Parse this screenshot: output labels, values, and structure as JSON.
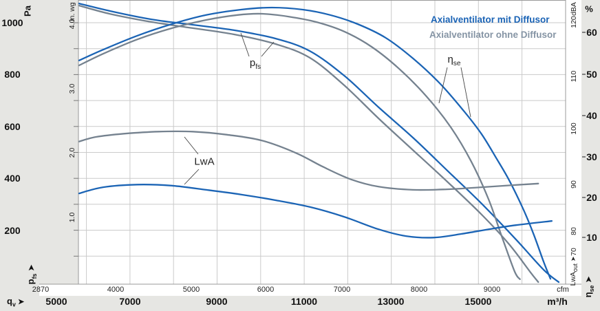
{
  "chart_data": {
    "type": "line",
    "title": "",
    "legend": [
      {
        "label": "Axialventilator mit Diffusor",
        "color": "#1a63b5"
      },
      {
        "label": "Axialventilator ohne Diffusor",
        "color": "#8594a4"
      }
    ],
    "colors": {
      "mit": "#1b64b5",
      "ohne": "#75828f",
      "grid": "#cacaca",
      "frame": "#999999",
      "leader": "#444444"
    },
    "axes": {
      "pressure_pa": {
        "unit": "Pa",
        "ticks": [
          "1000",
          "800",
          "600",
          "400",
          "200"
        ],
        "range": [
          0,
          1090
        ]
      },
      "pressure_inwg": {
        "unit": "in. wg",
        "ticks": [
          "4.0",
          "3.0",
          "2.0",
          "1.0"
        ]
      },
      "flow_m3h": {
        "unit": "m³/h",
        "axis_base": "q",
        "axis_sub": "v",
        "ticks": [
          "5000",
          "7000",
          "9000",
          "11000",
          "13000",
          "15000"
        ],
        "range": [
          4900,
          17100
        ]
      },
      "flow_cfm": {
        "unit": "cfm",
        "ticks": [
          "2870",
          "4000",
          "5000",
          "6000",
          "7000",
          "8000",
          "9000"
        ]
      },
      "sound_dba": {
        "unit": "dBA",
        "axis_base": "LwA",
        "axis_sub": "out",
        "ticks": [
          "120",
          "110",
          "100",
          "90",
          "80",
          "70"
        ]
      },
      "efficiency_pct": {
        "unit": "%",
        "axis_base": "η",
        "axis_sub": "se",
        "ticks": [
          "60",
          "50",
          "40",
          "30",
          "20",
          "10"
        ],
        "range": [
          0,
          66
        ]
      }
    },
    "arrow": "➤",
    "annotations": {
      "pfs": {
        "base": "p",
        "sub": "fs"
      },
      "eta": {
        "base": "η",
        "sub": "se"
      },
      "lwa": {
        "text": "LwA"
      }
    },
    "series": [
      {
        "name": "p_fs mit Diffusor",
        "axis": "pa",
        "group": "mit",
        "points": [
          [
            5830,
            1074
          ],
          [
            6540,
            1045
          ],
          [
            7490,
            1013
          ],
          [
            8440,
            992
          ],
          [
            9390,
            971
          ],
          [
            10340,
            939
          ],
          [
            11130,
            891
          ],
          [
            11920,
            796
          ],
          [
            12710,
            674
          ],
          [
            13500,
            557
          ],
          [
            14290,
            430
          ],
          [
            15080,
            302
          ],
          [
            15870,
            164
          ],
          [
            16500,
            48
          ],
          [
            16850,
            0
          ]
        ]
      },
      {
        "name": "p_fs ohne Diffusor",
        "axis": "pa",
        "group": "ohne",
        "points": [
          [
            5830,
            1066
          ],
          [
            6540,
            1034
          ],
          [
            7490,
            1003
          ],
          [
            8440,
            979
          ],
          [
            9390,
            955
          ],
          [
            10340,
            918
          ],
          [
            11130,
            865
          ],
          [
            11920,
            759
          ],
          [
            12710,
            631
          ],
          [
            13500,
            509
          ],
          [
            14290,
            387
          ],
          [
            15080,
            260
          ],
          [
            15710,
            146
          ],
          [
            16190,
            40
          ],
          [
            16380,
            0
          ]
        ]
      },
      {
        "name": "η_se mit Diffusor",
        "axis": "pct",
        "group": "mit",
        "points": [
          [
            5830,
            53.2
          ],
          [
            6380,
            55.8
          ],
          [
            7170,
            59.2
          ],
          [
            7960,
            62
          ],
          [
            8750,
            64.2
          ],
          [
            9550,
            65.5
          ],
          [
            10260,
            66
          ],
          [
            10970,
            65.5
          ],
          [
            11600,
            64.2
          ],
          [
            12230,
            62
          ],
          [
            12870,
            58.7
          ],
          [
            13500,
            53.7
          ],
          [
            14130,
            47.5
          ],
          [
            14680,
            40.8
          ],
          [
            15080,
            35.3
          ],
          [
            15400,
            29.8
          ],
          [
            15710,
            24.2
          ],
          [
            16030,
            17.3
          ],
          [
            16270,
            11.2
          ],
          [
            16500,
            4.5
          ],
          [
            16660,
            0.3
          ]
        ]
      },
      {
        "name": "η_se ohne Diffusor",
        "axis": "pct",
        "group": "ohne",
        "points": [
          [
            5830,
            52
          ],
          [
            6380,
            54.8
          ],
          [
            7170,
            58.3
          ],
          [
            7960,
            61
          ],
          [
            8750,
            63
          ],
          [
            9470,
            64.2
          ],
          [
            10020,
            64.5
          ],
          [
            10650,
            63.8
          ],
          [
            11280,
            62.5
          ],
          [
            11920,
            60.2
          ],
          [
            12550,
            56.5
          ],
          [
            13180,
            51.2
          ],
          [
            13810,
            44.5
          ],
          [
            14370,
            37
          ],
          [
            14840,
            28.7
          ],
          [
            15240,
            19.5
          ],
          [
            15550,
            10.3
          ],
          [
            15840,
            2
          ],
          [
            15960,
            0.2
          ]
        ]
      },
      {
        "name": "LwA mit Diffusor",
        "axis": "dba",
        "group": "mit",
        "points": [
          [
            5830,
            87
          ],
          [
            6380,
            88.2
          ],
          [
            7170,
            88.7
          ],
          [
            7960,
            88.5
          ],
          [
            8750,
            87.7
          ],
          [
            9550,
            86.8
          ],
          [
            10340,
            85.7
          ],
          [
            11130,
            84.4
          ],
          [
            11920,
            82.5
          ],
          [
            12710,
            80.1
          ],
          [
            13340,
            78.8
          ],
          [
            13970,
            78.5
          ],
          [
            14610,
            79.2
          ],
          [
            15240,
            80.1
          ],
          [
            15870,
            80.9
          ],
          [
            16690,
            81.7
          ]
        ]
      },
      {
        "name": "LwA ohne Diffusor",
        "axis": "dba",
        "group": "ohne",
        "points": [
          [
            5830,
            97
          ],
          [
            6230,
            97.9
          ],
          [
            6860,
            98.5
          ],
          [
            7650,
            98.9
          ],
          [
            8440,
            98.9
          ],
          [
            9230,
            98.3
          ],
          [
            10020,
            97.2
          ],
          [
            10810,
            94.8
          ],
          [
            11440,
            92.1
          ],
          [
            12080,
            89.7
          ],
          [
            12710,
            88.3
          ],
          [
            13500,
            87.7
          ],
          [
            14290,
            87.8
          ],
          [
            15080,
            88.2
          ],
          [
            15790,
            88.6
          ],
          [
            16380,
            88.9
          ]
        ]
      }
    ]
  }
}
